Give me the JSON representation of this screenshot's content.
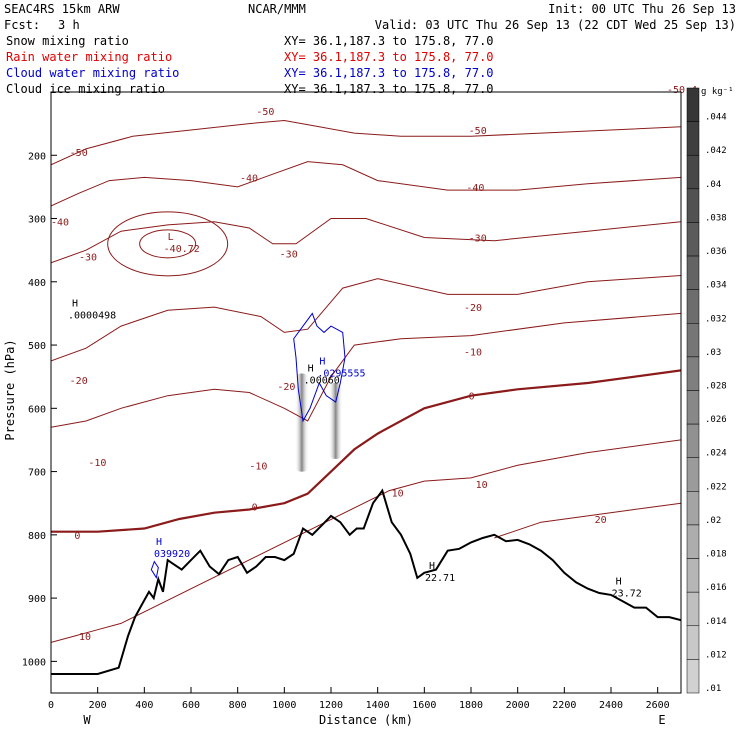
{
  "header": {
    "model": "SEAC4RS 15km ARW",
    "center": "NCAR/MMM",
    "init": "Init: 00 UTC Thu 26 Sep 13",
    "fcst_label": "Fcst:",
    "fcst_value": "3 h",
    "valid": "Valid: 03 UTC Thu 26 Sep 13 (22 CDT Wed 25 Sep 13)"
  },
  "fields": [
    {
      "name": "Snow mixing ratio",
      "xy": "XY=  36.1,187.3 to 175.8, 77.0",
      "color": "#000000"
    },
    {
      "name": "Rain water mixing ratio",
      "xy": "XY=  36.1,187.3 to 175.8, 77.0",
      "color": "#e00000"
    },
    {
      "name": "Cloud water mixing ratio",
      "xy": "XY=  36.1,187.3 to 175.8, 77.0",
      "color": "#0000cc"
    },
    {
      "name": "Cloud ice mixing ratio",
      "xy": "XY=  36.1,187.3 to 175.8, 77.0",
      "color": "#000000"
    }
  ],
  "colorbar": {
    "unit": "g kg⁻¹",
    "ticks": [
      ".044",
      ".042",
      ".04",
      ".038",
      ".036",
      ".034",
      ".032",
      ".03",
      ".028",
      ".026",
      ".024",
      ".022",
      ".02",
      ".018",
      ".016",
      ".014",
      ".012",
      ".01"
    ]
  },
  "chart_data": {
    "type": "cross-section",
    "xlabel": "Distance (km)",
    "ylabel": "Pressure (hPa)",
    "xlim": [
      0,
      2700
    ],
    "ylim": [
      1050,
      100
    ],
    "x_ticks": [
      0,
      200,
      400,
      600,
      800,
      1000,
      1200,
      1400,
      1600,
      1800,
      2000,
      2200,
      2400,
      2600
    ],
    "y_ticks": [
      200,
      300,
      400,
      500,
      600,
      700,
      800,
      900,
      1000
    ],
    "end_labels": {
      "left": "W",
      "right": "E"
    },
    "series": [
      {
        "name": "Temperature contours",
        "color": "#8b1a1a",
        "contour_labels": [
          {
            "text": "-50",
            "x": 80,
            "p": 195
          },
          {
            "text": "-50",
            "x": 880,
            "p": 130
          },
          {
            "text": "-50",
            "x": 1790,
            "p": 160
          },
          {
            "text": "-40",
            "x": 0,
            "p": 305
          },
          {
            "text": "-40",
            "x": 810,
            "p": 235
          },
          {
            "text": "-40",
            "x": 1780,
            "p": 250
          },
          {
            "text": "-30",
            "x": 120,
            "p": 360
          },
          {
            "text": "-30",
            "x": 980,
            "p": 355
          },
          {
            "text": "-30",
            "x": 1790,
            "p": 330
          },
          {
            "text": "-20",
            "x": 80,
            "p": 555
          },
          {
            "text": "-20",
            "x": 970,
            "p": 565
          },
          {
            "text": "-20",
            "x": 1770,
            "p": 440
          },
          {
            "text": "-10",
            "x": 160,
            "p": 685
          },
          {
            "text": "-10",
            "x": 850,
            "p": 690
          },
          {
            "text": "-10",
            "x": 1770,
            "p": 510
          },
          {
            "text": "0",
            "x": 100,
            "p": 800
          },
          {
            "text": "0",
            "x": 860,
            "p": 755
          },
          {
            "text": "0",
            "x": 1790,
            "p": 580
          },
          {
            "text": "10",
            "x": 120,
            "p": 960
          },
          {
            "text": "10",
            "x": 1460,
            "p": 733
          },
          {
            "text": "10",
            "x": 1820,
            "p": 720
          },
          {
            "text": "20",
            "x": 2330,
            "p": 775
          },
          {
            "text": "-50.4",
            "x": 2640,
            "p": 95
          }
        ],
        "extrema": [
          {
            "type": "L",
            "value": "-40.72",
            "x": 500,
            "p": 340
          },
          {
            "type": "H",
            "value": ".0000498",
            "x": 90,
            "p": 445
          },
          {
            "type": "H",
            "value": ".00060",
            "x": 1100,
            "p": 548
          },
          {
            "type": "H",
            "value": "22.71",
            "x": 1620,
            "p": 860
          },
          {
            "type": "H",
            "value": "23.72",
            "x": 2420,
            "p": 885
          }
        ]
      },
      {
        "name": "Terrain (surface pressure)",
        "color": "#000000",
        "x": [
          0,
          100,
          200,
          290,
          330,
          360,
          390,
          420,
          440,
          460,
          480,
          500,
          520,
          560,
          600,
          640,
          680,
          720,
          760,
          800,
          840,
          880,
          920,
          960,
          1000,
          1040,
          1080,
          1120,
          1160,
          1200,
          1240,
          1280,
          1310,
          1340,
          1380,
          1420,
          1460,
          1500,
          1540,
          1570,
          1600,
          1650,
          1700,
          1750,
          1800,
          1850,
          1900,
          1950,
          2000,
          2050,
          2100,
          2150,
          2200,
          2250,
          2300,
          2350,
          2400,
          2450,
          2500,
          2550,
          2600,
          2650,
          2700
        ],
        "p": [
          1020,
          1020,
          1020,
          1010,
          960,
          930,
          910,
          890,
          900,
          870,
          890,
          840,
          845,
          855,
          840,
          825,
          850,
          862,
          840,
          835,
          860,
          850,
          835,
          835,
          840,
          830,
          790,
          800,
          785,
          770,
          780,
          800,
          790,
          790,
          750,
          730,
          780,
          800,
          830,
          868,
          860,
          855,
          825,
          822,
          812,
          805,
          800,
          810,
          808,
          815,
          825,
          840,
          860,
          875,
          885,
          892,
          895,
          905,
          915,
          915,
          930,
          930,
          935
        ]
      },
      {
        "name": "Cloud water mixing ratio",
        "color": "#0000cc",
        "markers": [
          {
            "type": "H",
            "value": ".0295555",
            "x": 1150,
            "p": 537
          },
          {
            "type": "H",
            "value": "039920",
            "x": 450,
            "p": 822
          }
        ]
      },
      {
        "name": "Snow mixing ratio",
        "shading": [
          {
            "x": 1075,
            "p_top": 545,
            "p_bottom": 700,
            "max": 0.024
          },
          {
            "x": 1220,
            "p_top": 560,
            "p_bottom": 680,
            "max": 0.018
          }
        ]
      }
    ]
  }
}
